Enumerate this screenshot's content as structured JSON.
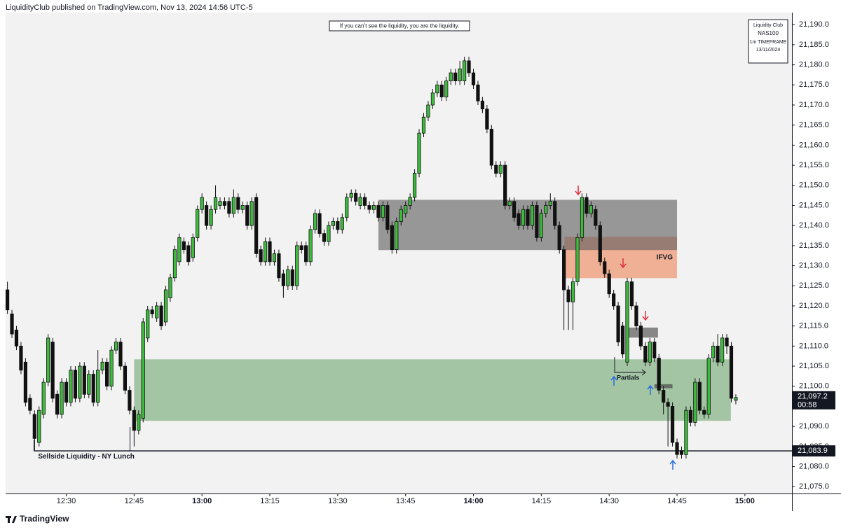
{
  "header": {
    "publisher": "LiquidityClub published on TradingView.com, Nov 13, 2024 14:56 UTC-5"
  },
  "footer": {
    "brand": "TradingView"
  },
  "chart_data": {
    "type": "candlestick",
    "note": "If you can’t see the liquidity, you are the liquidity.",
    "info_box": [
      "Liquidity Club",
      "NAS100",
      "1m TIMEFRAME",
      "13/11/2024"
    ],
    "partials_label": "Partials",
    "up_color": "#3dbb3d",
    "down_color": "#111111",
    "xlim": [
      736.6,
      910.4
    ],
    "ylim": [
      21073.3,
      21193
    ],
    "xticks": [
      {
        "value": 750,
        "label": "12:30"
      },
      {
        "value": 765,
        "label": "12:45"
      },
      {
        "value": 780,
        "label": "13:00"
      },
      {
        "value": 795,
        "label": "13:15"
      },
      {
        "value": 810,
        "label": "13:30"
      },
      {
        "value": 825,
        "label": "13:45"
      },
      {
        "value": 840,
        "label": "14:00"
      },
      {
        "value": 855,
        "label": "14:15"
      },
      {
        "value": 870,
        "label": "14:30"
      },
      {
        "value": 885,
        "label": "14:45"
      },
      {
        "value": 900,
        "label": "15:00"
      }
    ],
    "yticks": [
      {
        "value": 21075,
        "label": "21,075.0"
      },
      {
        "value": 21080,
        "label": "21,080.0"
      },
      {
        "value": 21085,
        "label": "21,085.0"
      },
      {
        "value": 21090,
        "label": "21,090.0"
      },
      {
        "value": 21095,
        "label": "21,095.0"
      },
      {
        "value": 21100,
        "label": "21,100.0"
      },
      {
        "value": 21105,
        "label": "21,105.0"
      },
      {
        "value": 21110,
        "label": "21,110.0"
      },
      {
        "value": 21115,
        "label": "21,115.0"
      },
      {
        "value": 21120,
        "label": "21,120.0"
      },
      {
        "value": 21125,
        "label": "21,125.0"
      },
      {
        "value": 21130,
        "label": "21,130.0"
      },
      {
        "value": 21135,
        "label": "21,135.0"
      },
      {
        "value": 21140,
        "label": "21,140.0"
      },
      {
        "value": 21145,
        "label": "21,145.0"
      },
      {
        "value": 21150,
        "label": "21,150.0"
      },
      {
        "value": 21155,
        "label": "21,155.0"
      },
      {
        "value": 21160,
        "label": "21,160.0"
      },
      {
        "value": 21165,
        "label": "21,165.0"
      },
      {
        "value": 21170,
        "label": "21,170.0"
      },
      {
        "value": 21175,
        "label": "21,175.0"
      },
      {
        "value": 21180,
        "label": "21,180.0"
      },
      {
        "value": 21185,
        "label": "21,185.0"
      },
      {
        "value": 21190,
        "label": "21,190.0"
      }
    ],
    "zones": [
      {
        "x0": 765,
        "x1": 896.9,
        "y0": 21091.4,
        "y1": 21106.7,
        "color": "rgba(100,160,100,0.55)"
      },
      {
        "x0": 860.1,
        "x1": 885,
        "y0": 21126.9,
        "y1": 21137.2,
        "color": "rgba(238,140,100,0.65)",
        "label": "IFVG"
      },
      {
        "x0": 819,
        "x1": 885,
        "y0": 21133.9,
        "y1": 21146.4,
        "color": "rgba(90,90,90,0.6)"
      },
      {
        "x0": 874.1,
        "x1": 880.8,
        "y0": 21112.1,
        "y1": 21114.6,
        "color": "rgba(90,90,90,0.7)"
      },
      {
        "x0": 880,
        "x1": 884,
        "y0": 21099.5,
        "y1": 21100.5,
        "color": "rgba(80,80,80,0.75)"
      }
    ],
    "sellside": {
      "value": 21083.9,
      "label": "21,083.9",
      "text": "Sellside Liquidity - NY Lunch",
      "x0": 743
    },
    "last_price": {
      "value": 21097.2,
      "label": "21,097.2",
      "countdown": "00:58"
    },
    "x": [
      737,
      738,
      739,
      740,
      741,
      742,
      743,
      744,
      745,
      746,
      747,
      748,
      749,
      750,
      751,
      752,
      753,
      754,
      755,
      756,
      757,
      758,
      759,
      760,
      761,
      762,
      763,
      764,
      765,
      766,
      767,
      768,
      769,
      770,
      771,
      772,
      773,
      774,
      775,
      776,
      777,
      778,
      779,
      780,
      781,
      782,
      783,
      784,
      785,
      786,
      787,
      788,
      789,
      790,
      791,
      792,
      793,
      794,
      795,
      796,
      797,
      798,
      799,
      800,
      801,
      802,
      803,
      804,
      805,
      806,
      807,
      808,
      809,
      810,
      811,
      812,
      813,
      814,
      815,
      816,
      817,
      818,
      819,
      820,
      821,
      822,
      823,
      824,
      825,
      826,
      827,
      828,
      829,
      830,
      831,
      832,
      833,
      834,
      835,
      836,
      837,
      838,
      839,
      840,
      841,
      842,
      843,
      844,
      845,
      846,
      847,
      848,
      849,
      850,
      851,
      852,
      853,
      854,
      855,
      856,
      857,
      858,
      859,
      860,
      861,
      862,
      863,
      864,
      865,
      866,
      867,
      868,
      869,
      870,
      871,
      872,
      873,
      874,
      875,
      876,
      877,
      878,
      879,
      880,
      881,
      882,
      883,
      884,
      885,
      886,
      887,
      888,
      889,
      890,
      891,
      892,
      893,
      894,
      895,
      896,
      897,
      898
    ],
    "open": [
      21124,
      21118,
      21114,
      21110,
      21106,
      21097,
      21093,
      21086,
      21093,
      21101,
      21111,
      21098,
      21093,
      21101,
      21096,
      21104,
      21097,
      21105,
      21098,
      21103,
      21096,
      21104,
      21106,
      21100,
      21109,
      21111,
      21105,
      21099,
      21094,
      21089,
      21092,
      21112,
      21119,
      21117,
      21120,
      21116,
      21122,
      21127,
      21131,
      21136,
      21135,
      21132,
      21137,
      21144,
      21145,
      21140,
      21144,
      21145,
      21146,
      21146,
      21143,
      21147,
      21144,
      21145,
      21140,
      21147,
      21134,
      21131,
      21136,
      21131,
      21133,
      21128,
      21125,
      21129,
      21125,
      21135,
      21135,
      21131,
      21139,
      21143,
      21138,
      21136,
      21140,
      21141,
      21139,
      21142,
      21147,
      21148,
      21145,
      21147,
      21145,
      21144,
      21145,
      21142,
      21145,
      21140,
      21134,
      21141,
      21143,
      21145,
      21147,
      21153,
      21163,
      21167,
      21170,
      21173,
      21175,
      21172,
      21176,
      21178,
      21176,
      21176,
      21181,
      21178,
      21175,
      21171,
      21169,
      21164,
      21155,
      21153,
      21155,
      21145,
      21146,
      21143,
      21140,
      21144,
      21140,
      21145,
      21137,
      21143,
      21145,
      21146,
      21140,
      21134,
      21124,
      21121,
      21126,
      21137,
      21147,
      21143,
      21144,
      21140,
      21131,
      21128,
      21123,
      21120,
      21115,
      21106,
      21126,
      21120,
      21115,
      21110,
      21106,
      21111,
      21107,
      21099,
      21096,
      21095,
      21086,
      21084,
      21083,
      21094,
      21091,
      21101,
      21094,
      21093,
      21107,
      21110,
      21106,
      21112,
      21110,
      21096.5
    ],
    "high": [
      21126,
      21119,
      21115,
      21111,
      21107,
      21098,
      21094,
      21095,
      21102,
      21113,
      21112,
      21099,
      21102,
      21102,
      21105,
      21105,
      21106,
      21106,
      21104,
      21104,
      21109,
      21107,
      21107,
      21110,
      21112,
      21112,
      21106,
      21100,
      21095,
      21094,
      21117,
      21120,
      21120,
      21121,
      21121,
      21125,
      21128,
      21135,
      21138,
      21137,
      21136,
      21138,
      21145,
      21148,
      21146,
      21145,
      21150,
      21147,
      21147,
      21147,
      21149,
      21148,
      21146,
      21146,
      21147,
      21148,
      21135,
      21137,
      21137,
      21134,
      21134,
      21129,
      21130,
      21130,
      21136,
      21136,
      21136,
      21140,
      21144,
      21144,
      21139,
      21141,
      21142,
      21142,
      21143,
      21148,
      21149,
      21149,
      21148,
      21148,
      21146,
      21146,
      21146,
      21146,
      21146,
      21141,
      21142,
      21145,
      21146,
      21148,
      21154,
      21164,
      21168,
      21171,
      21174,
      21176,
      21176,
      21177,
      21179,
      21179,
      21181,
      21182,
      21182,
      21179,
      21176,
      21172,
      21170,
      21165,
      21156,
      21156,
      21156,
      21147,
      21147,
      21144,
      21145,
      21145,
      21146,
      21146,
      21144,
      21146,
      21148,
      21147,
      21141,
      21135,
      21125,
      21127,
      21138,
      21148,
      21148,
      21146,
      21145,
      21141,
      21132,
      21129,
      21124,
      21121,
      21116,
      21127,
      21127,
      21121,
      21116,
      21111,
      21112,
      21112,
      21108,
      21100,
      21097,
      21096,
      21087,
      21085,
      21095,
      21095,
      21102,
      21102,
      21095,
      21108,
      21111,
      21113,
      21113,
      21113,
      21111,
      21098
    ],
    "low": [
      21118,
      21112,
      21109,
      21103,
      21095,
      21093,
      21084,
      21085,
      21092,
      21100,
      21096,
      21092,
      21092,
      21095,
      21095,
      21096,
      21096,
      21097,
      21097,
      21095,
      21095,
      21103,
      21099,
      21099,
      21108,
      21104,
      21098,
      21093,
      21085,
      21088,
      21091,
      21111,
      21117,
      21116,
      21114,
      21115,
      21121,
      21126,
      21130,
      21133,
      21130,
      21131,
      21136,
      21143,
      21139,
      21139,
      21143,
      21144,
      21144,
      21142,
      21142,
      21143,
      21143,
      21139,
      21139,
      21132,
      21130,
      21130,
      21130,
      21130,
      21126,
      21122,
      21124,
      21124,
      21124,
      21133,
      21130,
      21130,
      21138,
      21137,
      21135,
      21135,
      21139,
      21138,
      21138,
      21141,
      21146,
      21145,
      21144,
      21144,
      21143,
      21143,
      21141,
      21141,
      21138,
      21133,
      21133,
      21140,
      21142,
      21144,
      21146,
      21152,
      21162,
      21166,
      21169,
      21172,
      21171,
      21171,
      21175,
      21175,
      21175,
      21175,
      21177,
      21174,
      21170,
      21168,
      21163,
      21154,
      21152,
      21152,
      21144,
      21144,
      21141,
      21139,
      21139,
      21139,
      21139,
      21136,
      21136,
      21142,
      21144,
      21139,
      21133,
      21114,
      21114,
      21114,
      21125,
      21136,
      21142,
      21142,
      21139,
      21130,
      21127,
      21122,
      21119,
      21110,
      21107,
      21105,
      21119,
      21114,
      21109,
      21105,
      21105,
      21106,
      21098,
      21093,
      21085,
      21085,
      21082,
      21082,
      21082,
      21090,
      21090,
      21093,
      21092,
      21092,
      21106,
      21105,
      21105,
      21108,
      21096,
      21095.5
    ],
    "close": [
      21119,
      21113,
      21110,
      21104,
      21096,
      21094,
      21087,
      21094,
      21101,
      21112,
      21097,
      21093,
      21101,
      21096,
      21104,
      21097,
      21105,
      21098,
      21103,
      21096,
      21104,
      21106,
      21100,
      21109,
      21111,
      21105,
      21099,
      21094,
      21089,
      21093,
      21116,
      21119,
      21118,
      21120,
      21115,
      21124,
      21127,
      21134,
      21137,
      21134,
      21131,
      21137,
      21144,
      21147,
      21140,
      21144,
      21147,
      21146,
      21145,
      21143,
      21147,
      21144,
      21145,
      21140,
      21146,
      21133,
      21131,
      21136,
      21131,
      21133,
      21127,
      21125,
      21129,
      21125,
      21135,
      21134,
      21131,
      21139,
      21143,
      21138,
      21136,
      21140,
      21141,
      21139,
      21142,
      21147,
      21148,
      21146,
      21147,
      21145,
      21144,
      21145,
      21142,
      21145,
      21139,
      21134,
      21141,
      21144,
      21145,
      21147,
      21153,
      21163,
      21167,
      21170,
      21173,
      21175,
      21172,
      21176,
      21178,
      21176,
      21179,
      21181,
      21178,
      21175,
      21171,
      21169,
      21164,
      21155,
      21153,
      21155,
      21145,
      21146,
      21142,
      21140,
      21144,
      21140,
      21145,
      21137,
      21143,
      21145,
      21146,
      21140,
      21134,
      21124,
      21121,
      21126,
      21137,
      21147,
      21143,
      21145,
      21140,
      21131,
      21128,
      21123,
      21120,
      21111,
      21108,
      21126,
      21120,
      21115,
      21110,
      21106,
      21111,
      21107,
      21099,
      21096,
      21095,
      21086,
      21083,
      21083,
      21094,
      21091,
      21101,
      21094,
      21093,
      21107,
      21110,
      21106,
      21112,
      21110,
      21097,
      21097.2
    ]
  }
}
